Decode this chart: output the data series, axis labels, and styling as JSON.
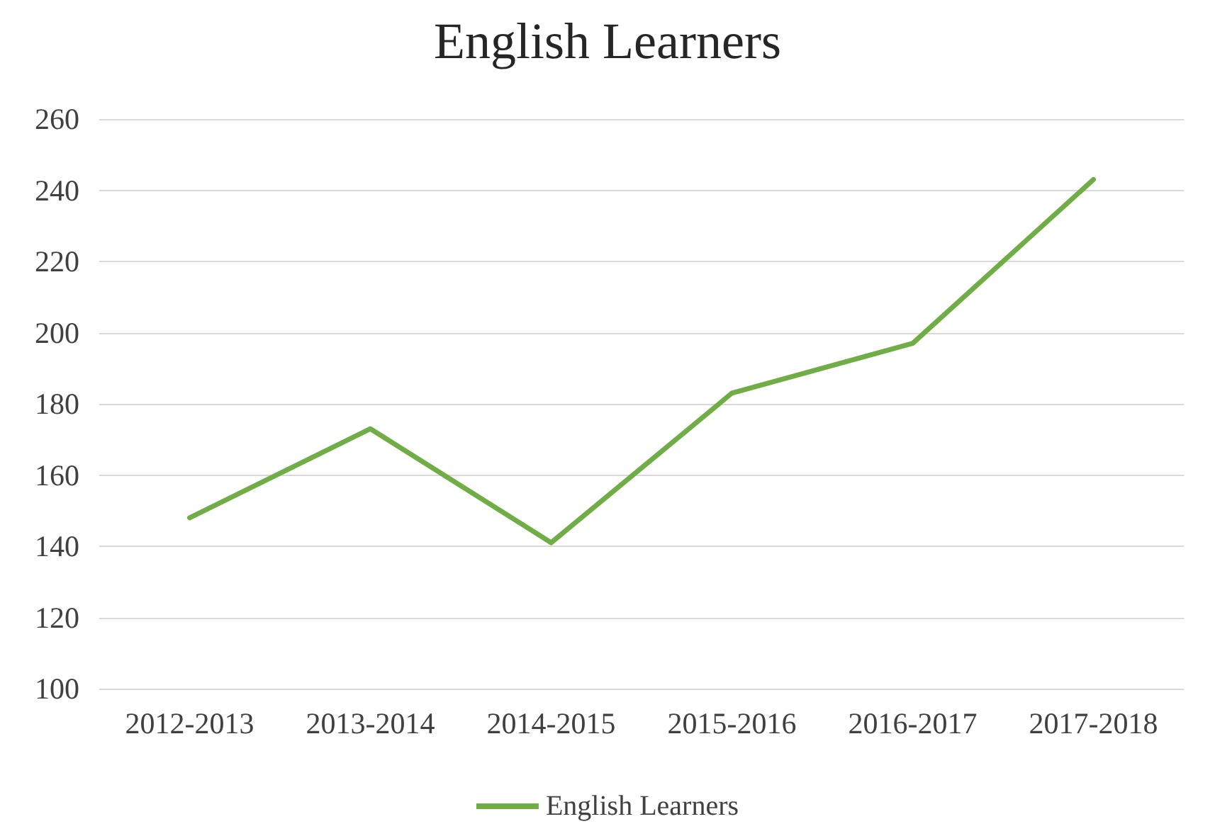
{
  "chart_data": {
    "type": "line",
    "title": "English Learners",
    "categories": [
      "2012-2013",
      "2013-2014",
      "2014-2015",
      "2015-2016",
      "2016-2017",
      "2017-2018"
    ],
    "series": [
      {
        "name": "English Learners",
        "color": "#70ad47",
        "values": [
          148,
          173,
          141,
          183,
          197,
          243
        ]
      }
    ],
    "ylim": [
      100,
      260
    ],
    "yticks": [
      100,
      120,
      140,
      160,
      180,
      200,
      220,
      240,
      260
    ],
    "grid": "y",
    "legend": "bottom",
    "marker": "none",
    "line_style": "solid"
  }
}
